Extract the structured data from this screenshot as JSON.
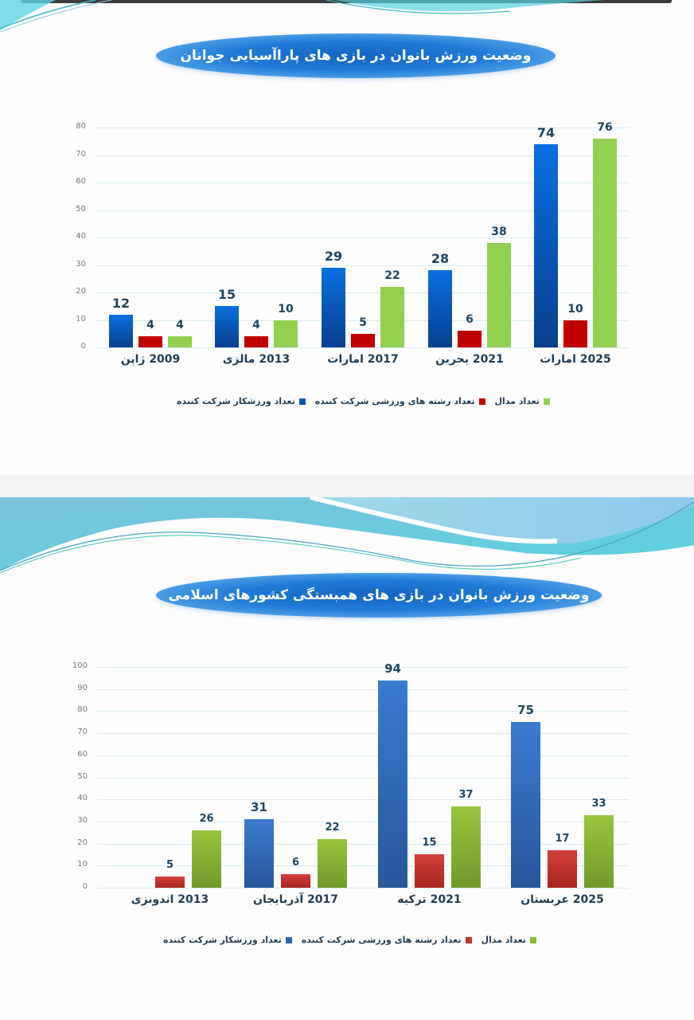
{
  "colors": {
    "series_blue_1": "#0a56b8",
    "series_red_1": "#c00000",
    "series_green_1": "#92d050",
    "series_blue_2": "#2e66b0",
    "series_red_2": "#c0302c",
    "series_green_2": "#82b03c"
  },
  "chart_data": [
    {
      "type": "bar",
      "title": "وضعیت ورزش بانوان در بازی های پاراآسیایی جوانان",
      "categories": [
        "2009 ژاپن",
        "2013 مالزی",
        "2017 امارات",
        "2021 بحرین",
        "2025 امارات"
      ],
      "series": [
        {
          "name": "تعداد ورزشکار شرکت کننده",
          "values": [
            12,
            15,
            29,
            28,
            74
          ]
        },
        {
          "name": "تعداد رشته های ورزشی شرکت کننده",
          "values": [
            4,
            4,
            5,
            6,
            10
          ]
        },
        {
          "name": "تعداد مدال",
          "values": [
            4,
            10,
            22,
            38,
            76
          ]
        }
      ],
      "yticks": [
        0,
        10,
        20,
        30,
        40,
        50,
        60,
        70,
        80
      ],
      "ylim": [
        0,
        80
      ],
      "xlabel": "",
      "ylabel": "",
      "grid": true,
      "legend_position": "bottom"
    },
    {
      "type": "bar",
      "title": "وضعیت ورزش بانوان در بازی های همبستگی کشورهای اسلامی",
      "categories": [
        "2013 اندونزی",
        "2017 آذربایجان",
        "2021 ترکیه",
        "2025 عربستان"
      ],
      "series": [
        {
          "name": "تعداد ورزشکار شرکت کننده",
          "values": [
            null,
            31,
            94,
            75
          ]
        },
        {
          "name": "تعداد رشته های ورزشی شرکت کننده",
          "values": [
            5,
            6,
            15,
            17
          ]
        },
        {
          "name": "تعداد مدال",
          "values": [
            26,
            22,
            37,
            33
          ]
        }
      ],
      "yticks": [
        0,
        10,
        20,
        30,
        40,
        50,
        60,
        70,
        80,
        90,
        100
      ],
      "ylim": [
        0,
        100
      ],
      "xlabel": "",
      "ylabel": "",
      "grid": true,
      "legend_position": "bottom"
    }
  ],
  "chart1": {
    "title": "وضعیت ورزش بانوان در بازی های پاراآسیایی جوانان",
    "legend": [
      "تعداد مدال",
      "تعداد رشته های ورزشی شرکت کننده",
      "تعداد ورزشکار شرکت کننده"
    ]
  },
  "chart2": {
    "title": "وضعیت ورزش بانوان در بازی های همبستگی کشورهای اسلامی",
    "legend": [
      "تعداد مدال",
      "تعداد رشته های ورزشی شرکت کننده",
      "تعداد ورزشکار شرکت کننده"
    ]
  }
}
